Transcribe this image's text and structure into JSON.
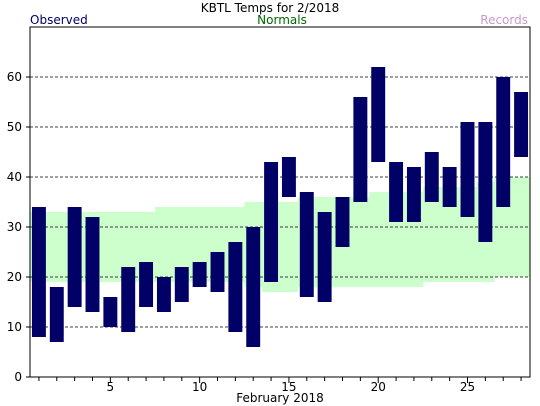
{
  "chart_data": {
    "type": "bar",
    "title": "KBTL Temps for 2/2018",
    "legend": [
      {
        "label": "Observed",
        "color": "#000066",
        "position": "top-left"
      },
      {
        "label": "Normals",
        "color": "#006600",
        "position": "top-center"
      },
      {
        "label": "Records",
        "color": "#cc99cc",
        "position": "top-right"
      }
    ],
    "xlabel": "February 2018",
    "ylabel": "",
    "ylim": [
      0,
      70
    ],
    "yticks": [
      0,
      10,
      20,
      30,
      40,
      50,
      60
    ],
    "xticks": [
      5,
      10,
      15,
      20,
      25
    ],
    "xlim": [
      0.5,
      28.5
    ],
    "grid": true,
    "colors": {
      "observed": "#000066",
      "normals": "#ccffcc"
    },
    "days": [
      1,
      2,
      3,
      4,
      5,
      6,
      7,
      8,
      9,
      10,
      11,
      12,
      13,
      14,
      15,
      16,
      17,
      18,
      19,
      20,
      21,
      22,
      23,
      24,
      25,
      26,
      27,
      28
    ],
    "series": [
      {
        "name": "Observed",
        "low": [
          8,
          7,
          14,
          13,
          10,
          9,
          14,
          13,
          15,
          18,
          17,
          9,
          6,
          19,
          36,
          16,
          15,
          26,
          35,
          43,
          31,
          31,
          35,
          34,
          32,
          27,
          34,
          44
        ],
        "high": [
          34,
          18,
          34,
          32,
          16,
          22,
          23,
          20,
          22,
          23,
          25,
          27,
          30,
          43,
          44,
          37,
          33,
          36,
          56,
          62,
          43,
          42,
          45,
          42,
          51,
          51,
          60,
          57
        ]
      },
      {
        "name": "Normals",
        "low": [
          19,
          19,
          19,
          19,
          19,
          19,
          19,
          19,
          19,
          19,
          19,
          19,
          18,
          17,
          17,
          18,
          18,
          18,
          18,
          18,
          18,
          18,
          19,
          19,
          19,
          19,
          20,
          20
        ],
        "high": [
          33,
          33,
          33,
          33,
          33,
          33,
          33,
          34,
          34,
          34,
          34,
          34,
          35,
          35,
          35,
          36,
          36,
          36,
          36,
          37,
          37,
          37,
          38,
          38,
          38,
          39,
          40,
          40
        ]
      }
    ]
  }
}
